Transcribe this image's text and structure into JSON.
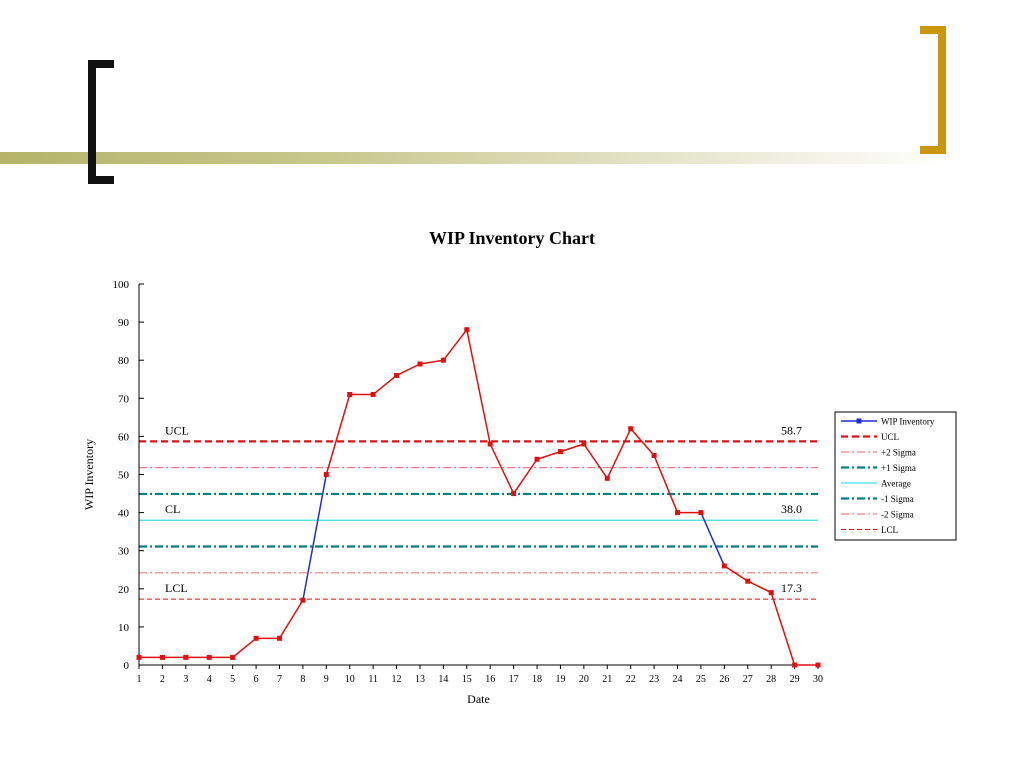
{
  "colors": {
    "series_line": "#e01010",
    "series_line_below": "#1f2fd0",
    "ucl": "#e01010",
    "plus2": "#f08080",
    "plus1": "#008080",
    "average": "#40e0e0",
    "minus1": "#008080",
    "minus2": "#f08080",
    "lcl": "#e01010",
    "bracket_left": "#111111",
    "bracket_right": "#c9960c"
  },
  "chart_data": {
    "type": "line",
    "title": "WIP Inventory Chart",
    "xlabel": "Date",
    "ylabel": "WIP Inventory",
    "xlim": [
      1,
      30
    ],
    "ylim": [
      0,
      100
    ],
    "y_ticks": [
      0,
      10,
      20,
      30,
      40,
      50,
      60,
      70,
      80,
      90,
      100
    ],
    "x": [
      1,
      2,
      3,
      4,
      5,
      6,
      7,
      8,
      9,
      10,
      11,
      12,
      13,
      14,
      15,
      16,
      17,
      18,
      19,
      20,
      21,
      22,
      23,
      24,
      25,
      26,
      27,
      28,
      29,
      30
    ],
    "series": [
      {
        "name": "WIP Inventory",
        "values": [
          2,
          2,
          2,
          2,
          2,
          7,
          7,
          17,
          50,
          71,
          71,
          76,
          79,
          80,
          88,
          58,
          45,
          54,
          56,
          58,
          49,
          62,
          55,
          40,
          40,
          26,
          22,
          19,
          0,
          0
        ]
      }
    ],
    "control_lines": [
      {
        "name": "UCL",
        "value": 58.7,
        "style": "dashed-bold"
      },
      {
        "name": "+2 Sigma",
        "value": 51.8,
        "style": "dashdot"
      },
      {
        "name": "+1 Sigma",
        "value": 44.9,
        "style": "dashdot-bold"
      },
      {
        "name": "Average",
        "value": 38.0,
        "style": "solid"
      },
      {
        "name": "-1 Sigma",
        "value": 31.1,
        "style": "dashdot-bold"
      },
      {
        "name": "-2 Sigma",
        "value": 24.2,
        "style": "dashdot"
      },
      {
        "name": "LCL",
        "value": 17.3,
        "style": "dashed"
      }
    ],
    "line_labels": {
      "ucl_label": "UCL",
      "ucl_value": "58.7",
      "cl_label": "CL",
      "cl_value": "38.0",
      "lcl_label": "LCL",
      "lcl_value": "17.3"
    },
    "legend": {
      "placement": "right",
      "entries": [
        "WIP Inventory",
        "UCL",
        "+2 Sigma",
        "+1 Sigma",
        "Average",
        "-1 Sigma",
        "-2 Sigma",
        "LCL"
      ]
    },
    "grid": false
  }
}
